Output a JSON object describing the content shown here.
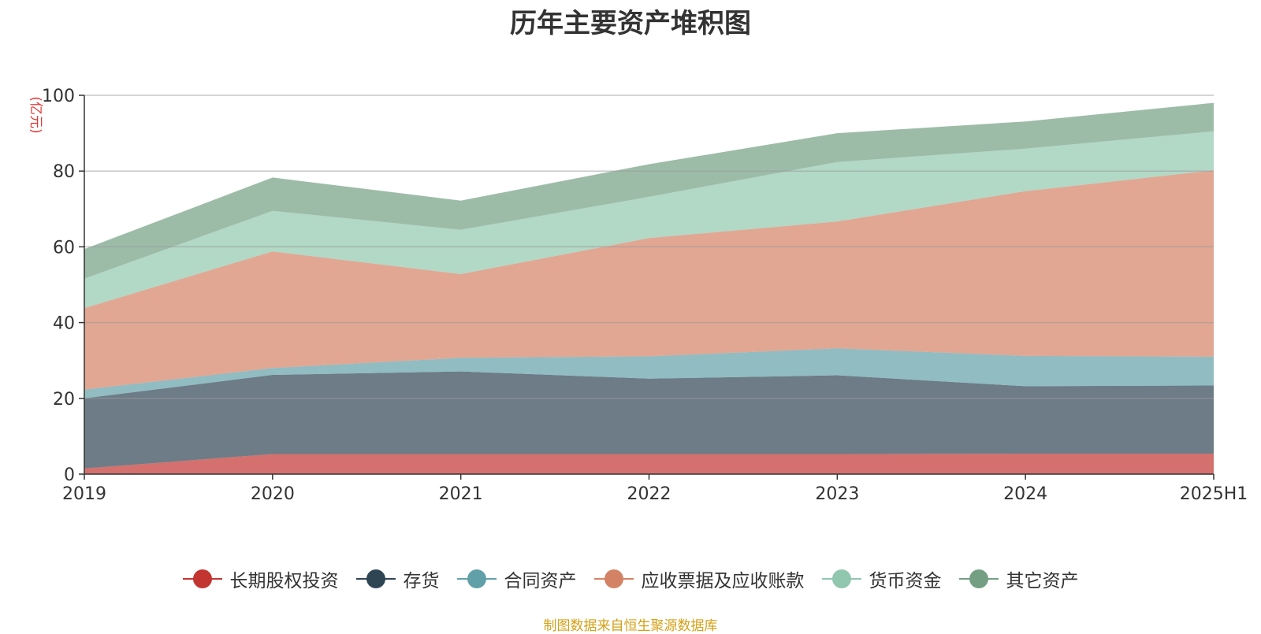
{
  "title": "历年主要资产堆积图",
  "source_note": "制图数据来自恒生聚源数据库",
  "chart_data": {
    "type": "area",
    "stacked": true,
    "title": "历年主要资产堆积图",
    "ylabel": "(亿元)",
    "xlabel": "",
    "ylim": [
      0,
      100
    ],
    "yticks": [
      0,
      20,
      40,
      60,
      80,
      100
    ],
    "grid": true,
    "legend_position": "bottom",
    "categories": [
      "2019",
      "2020",
      "2021",
      "2022",
      "2023",
      "2024",
      "2025H1"
    ],
    "series": [
      {
        "name": "长期股权投资",
        "color": "#c23531",
        "values": [
          1.5,
          5.3,
          5.3,
          5.3,
          5.3,
          5.4,
          5.4
        ]
      },
      {
        "name": "存货",
        "color": "#2f4554",
        "values": [
          18.5,
          20.9,
          21.8,
          19.9,
          20.8,
          17.8,
          18.0
        ]
      },
      {
        "name": "合同资产",
        "color": "#61a0a8",
        "values": [
          2.3,
          1.8,
          3.6,
          5.9,
          7.1,
          8.0,
          7.6
        ]
      },
      {
        "name": "应收票据及应收账款",
        "color": "#d48265",
        "values": [
          21.5,
          30.8,
          22.1,
          31.2,
          33.5,
          43.5,
          49.2
        ]
      },
      {
        "name": "货币资金",
        "color": "#91c7ae",
        "values": [
          7.8,
          10.7,
          11.7,
          10.9,
          15.7,
          11.2,
          10.3
        ]
      },
      {
        "name": "其它资产",
        "color": "#749f83",
        "values": [
          7.8,
          8.8,
          7.7,
          8.6,
          7.6,
          7.2,
          7.5
        ]
      }
    ]
  }
}
